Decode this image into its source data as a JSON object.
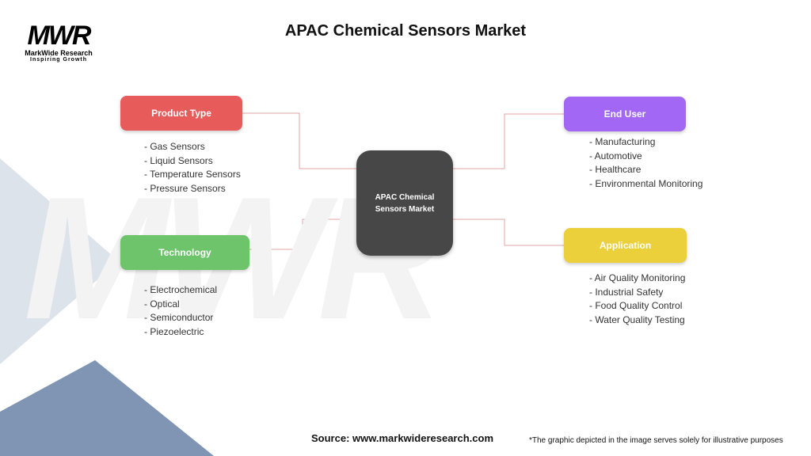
{
  "logo": {
    "mark": "MWR",
    "name": "MarkWide Research",
    "tagline": "Inspiring Growth"
  },
  "title": "APAC Chemical Sensors Market",
  "center": {
    "label": "APAC Chemical Sensors Market"
  },
  "categories": [
    {
      "label": "Product Type",
      "color": "#e85b5b",
      "items": [
        "- Gas Sensors",
        "- Liquid Sensors",
        "- Temperature Sensors",
        "- Pressure Sensors"
      ]
    },
    {
      "label": "Technology",
      "color": "#6dc46b",
      "items": [
        "- Electrochemical",
        "- Optical",
        "- Semiconductor",
        "- Piezoelectric"
      ]
    },
    {
      "label": "End User",
      "color": "#a267f4",
      "items": [
        "- Manufacturing",
        "- Automotive",
        "- Healthcare",
        "- Environmental Monitoring"
      ]
    },
    {
      "label": "Application",
      "color": "#ecd03b",
      "items": [
        "- Air Quality Monitoring",
        "- Industrial Safety",
        "- Food Quality Control",
        "- Water Quality Testing"
      ]
    }
  ],
  "footer": {
    "source": "Source: www.markwideresearch.com",
    "disclaimer": "*The graphic depicted in the image serves solely for illustrative purposes"
  }
}
